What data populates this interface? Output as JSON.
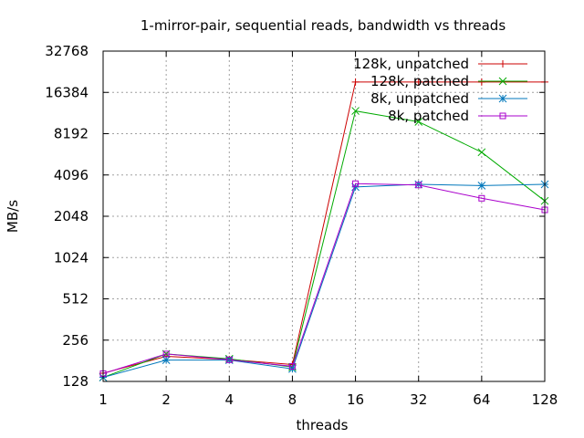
{
  "chart_data": {
    "type": "line",
    "title": "1-mirror-pair, sequential reads, bandwidth vs threads",
    "xlabel": "threads",
    "ylabel": "MB/s",
    "x_scale": "log2",
    "y_scale": "log2",
    "categories": [
      "1",
      "2",
      "4",
      "8",
      "16",
      "32",
      "64",
      "128"
    ],
    "x": [
      1,
      2,
      4,
      8,
      16,
      32,
      64,
      128
    ],
    "ylim": [
      128,
      32768
    ],
    "y_ticks": [
      128,
      256,
      512,
      1024,
      2048,
      4096,
      8192,
      16384,
      32768
    ],
    "grid": true,
    "legend_position": "top-right",
    "series": [
      {
        "name": "128k, unpatched",
        "color": "#cc0000",
        "marker": "plus",
        "values": [
          147,
          195,
          185,
          170,
          19500,
          19500,
          19500,
          19500
        ]
      },
      {
        "name": "128k, patched",
        "color": "#00aa00",
        "marker": "cross",
        "values": [
          137,
          203,
          187,
          163,
          12000,
          10000,
          6000,
          2650
        ]
      },
      {
        "name": "8k, unpatched",
        "color": "#0077bb",
        "marker": "star",
        "values": [
          137,
          183,
          183,
          158,
          3350,
          3500,
          3430,
          3500
        ]
      },
      {
        "name": "8k, patched",
        "color": "#aa00cc",
        "marker": "square",
        "values": [
          146,
          203,
          184,
          165,
          3540,
          3460,
          2770,
          2280
        ]
      }
    ]
  }
}
